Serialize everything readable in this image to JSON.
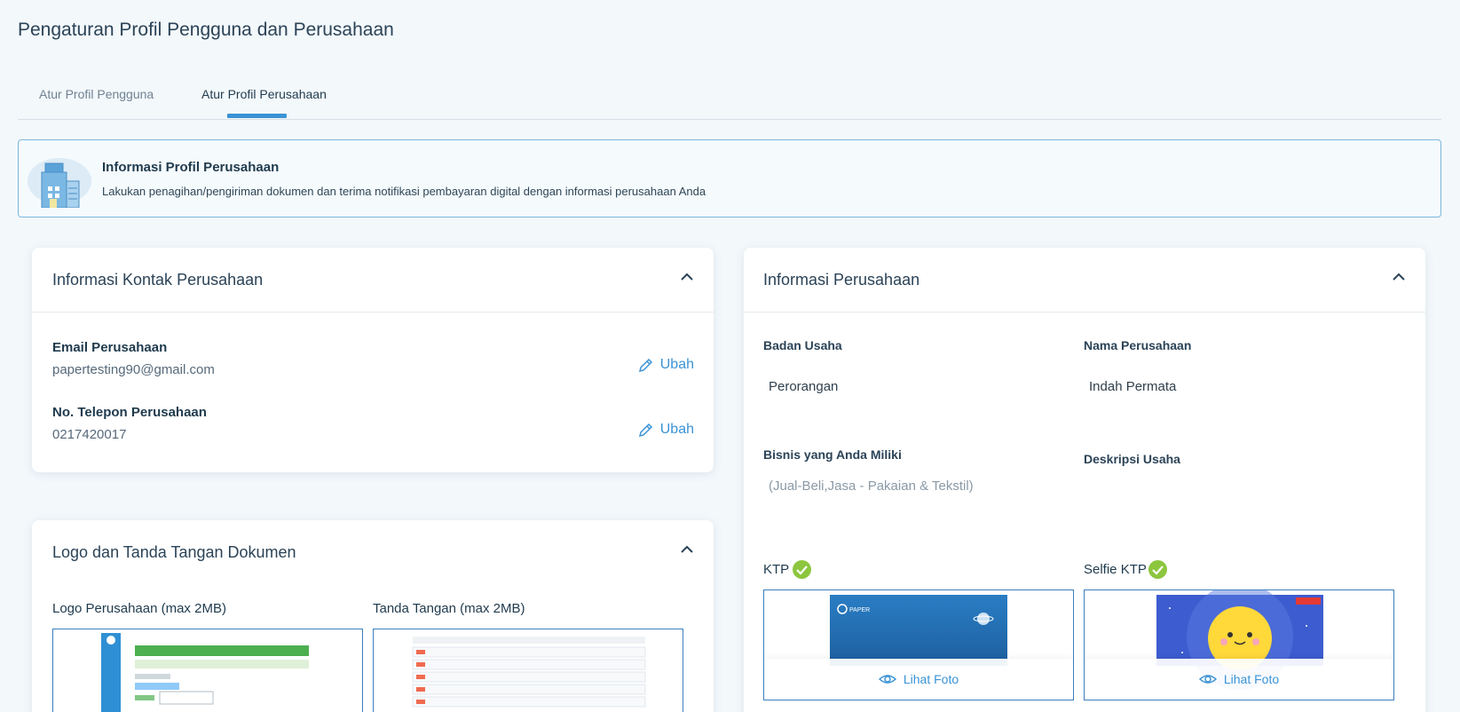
{
  "page": {
    "title": "Pengaturan Profil Pengguna dan Perusahaan"
  },
  "tabs": [
    {
      "label": "Atur Profil Pengguna",
      "active": false
    },
    {
      "label": "Atur Profil Perusahaan",
      "active": true
    }
  ],
  "banner": {
    "title": "Informasi Profil Perusahaan",
    "description": "Lakukan penagihan/pengiriman dokumen dan terima notifikasi pembayaran digital dengan informasi perusahaan Anda",
    "icon": "building-icon"
  },
  "contact_card": {
    "title": "Informasi Kontak Perusahaan",
    "email_label": "Email Perusahaan",
    "email_value": "papertesting90@gmail.com",
    "phone_label": "No. Telepon Perusahaan",
    "phone_value": "0217420017",
    "edit_label": "Ubah"
  },
  "logo_card": {
    "title": "Logo dan Tanda Tangan Dokumen",
    "logo_label": "Logo Perusahaan (max 2MB)",
    "signature_label": "Tanda Tangan (max 2MB)"
  },
  "company_card": {
    "title": "Informasi Perusahaan",
    "business_entity_label": "Badan Usaha",
    "business_entity_value": "Perorangan",
    "company_name_label": "Nama Perusahaan",
    "company_name_value": "Indah Permata",
    "business_type_label": "Bisnis yang Anda Miliki",
    "business_type_value": "(Jual-Beli,Jasa - Pakaian & Tekstil)",
    "description_label": "Deskripsi Usaha",
    "description_value": "",
    "ktp_label": "KTP",
    "selfie_label": "Selfie KTP",
    "view_photo_label": "Lihat Foto",
    "ktp_photo_text": "PAPER"
  },
  "colors": {
    "accent": "#3a93d6",
    "verified": "#8cc63f",
    "background": "#f3f8fb"
  }
}
